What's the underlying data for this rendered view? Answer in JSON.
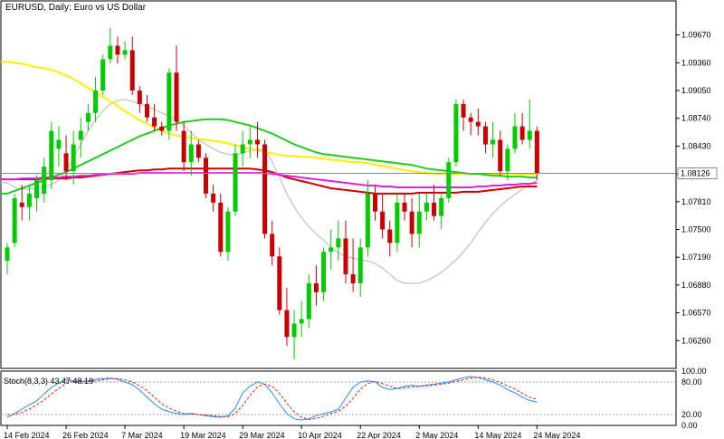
{
  "header": {
    "title": "EURUSD, Daily:  Euro vs US Dollar"
  },
  "subwindow": {
    "label": "Stoch(8,3,3) 43.47 48.19"
  },
  "colors": {
    "bull": "#00cc00",
    "bear": "#cc0000",
    "ma_yellow": "#ffee00",
    "ma_green": "#22cc22",
    "ma_gray": "#c8c8c8",
    "ma_red": "#cc0000",
    "ma_magenta": "#dd22dd",
    "stoch_main": "#1e90ff",
    "stoch_signal": "#dd2222",
    "price_line": "#7a8fa6"
  },
  "chart_data": [
    {
      "type": "candlestick",
      "symbol": "EURUSD",
      "timeframe": "Daily",
      "ylim": [
        1.0595,
        1.1005
      ],
      "y_ticks": [
        "1.09670",
        "1.09360",
        "1.09050",
        "1.08740",
        "1.08430",
        "1.08120",
        "1.07810",
        "1.07500",
        "1.07190",
        "1.06880",
        "1.06570",
        "1.06260"
      ],
      "last_price": "1.08126",
      "x_ticks": [
        "14 Feb 2024",
        "26 Feb 2024",
        "7 Mar 2024",
        "19 Mar 2024",
        "29 Mar 2024",
        "10 Apr 2024",
        "22 Apr 2024",
        "2 May 2024",
        "14 May 2024",
        "24 May 2024"
      ],
      "x_tick_index": [
        0,
        8,
        16,
        24,
        32,
        40,
        48,
        56,
        64,
        72
      ],
      "candles": [
        [
          1.0715,
          1.0735,
          1.07,
          1.073
        ],
        [
          1.0735,
          1.079,
          1.073,
          1.0785
        ],
        [
          1.078,
          1.08,
          1.076,
          1.0775
        ],
        [
          1.0775,
          1.08,
          1.076,
          1.079
        ],
        [
          1.0785,
          1.081,
          1.077,
          1.0805
        ],
        [
          1.079,
          1.083,
          1.078,
          1.082
        ],
        [
          1.0805,
          1.087,
          1.0795,
          1.086
        ],
        [
          1.084,
          1.0865,
          1.082,
          1.085
        ],
        [
          1.0835,
          1.0855,
          1.0805,
          1.0815
        ],
        [
          1.0815,
          1.086,
          1.08,
          1.0845
        ],
        [
          1.085,
          1.0875,
          1.083,
          1.086
        ],
        [
          1.087,
          1.089,
          1.086,
          1.088
        ],
        [
          1.088,
          1.092,
          1.087,
          1.0905
        ],
        [
          1.0905,
          1.0945,
          1.09,
          1.094
        ],
        [
          1.094,
          1.0975,
          1.0935,
          1.0955
        ],
        [
          1.0955,
          1.0965,
          1.0935,
          1.0945
        ],
        [
          1.0945,
          1.096,
          1.094,
          1.095
        ],
        [
          1.095,
          1.0965,
          1.09,
          1.0905
        ],
        [
          1.0905,
          1.091,
          1.088,
          1.089
        ],
        [
          1.089,
          1.09,
          1.087,
          1.0875
        ],
        [
          1.0875,
          1.089,
          1.086,
          1.0865
        ],
        [
          1.0865,
          1.087,
          1.0855,
          1.086
        ],
        [
          1.086,
          1.093,
          1.085,
          1.0925
        ],
        [
          1.0925,
          1.0955,
          1.086,
          1.087
        ],
        [
          1.086,
          1.087,
          1.0815,
          1.0825
        ],
        [
          1.0825,
          1.086,
          1.081,
          1.0845
        ],
        [
          1.0845,
          1.085,
          1.0825,
          1.083
        ],
        [
          1.083,
          1.0835,
          1.0785,
          1.079
        ],
        [
          1.079,
          1.08,
          1.077,
          1.078
        ],
        [
          1.078,
          1.079,
          1.072,
          1.0725
        ],
        [
          1.0725,
          1.0775,
          1.0715,
          1.077
        ],
        [
          1.077,
          1.0845,
          1.0765,
          1.0835
        ],
        [
          1.0835,
          1.086,
          1.082,
          1.0845
        ],
        [
          1.0845,
          1.0865,
          1.083,
          1.085
        ],
        [
          1.085,
          1.087,
          1.083,
          1.0845
        ],
        [
          1.0845,
          1.085,
          1.074,
          1.0745
        ],
        [
          1.0745,
          1.076,
          1.071,
          1.072
        ],
        [
          1.072,
          1.073,
          1.0655,
          1.066
        ],
        [
          1.066,
          1.0685,
          1.062,
          1.063
        ],
        [
          1.063,
          1.066,
          1.0605,
          1.0645
        ],
        [
          1.0645,
          1.067,
          1.063,
          1.065
        ],
        [
          1.065,
          1.07,
          1.064,
          1.069
        ],
        [
          1.069,
          1.071,
          1.0665,
          1.068
        ],
        [
          1.068,
          1.073,
          1.067,
          1.0725
        ],
        [
          1.0725,
          1.075,
          1.0705,
          1.073
        ],
        [
          1.073,
          1.076,
          1.0715,
          1.074
        ],
        [
          1.074,
          1.076,
          1.069,
          1.07
        ],
        [
          1.07,
          1.074,
          1.068,
          1.069
        ],
        [
          1.069,
          1.074,
          1.0675,
          1.073
        ],
        [
          1.073,
          1.0805,
          1.072,
          1.079
        ],
        [
          1.079,
          1.08,
          1.076,
          1.077
        ],
        [
          1.077,
          1.079,
          1.074,
          1.075
        ],
        [
          1.075,
          1.076,
          1.072,
          1.0735
        ],
        [
          1.0735,
          1.079,
          1.0725,
          1.078
        ],
        [
          1.078,
          1.079,
          1.076,
          1.077
        ],
        [
          1.077,
          1.0785,
          1.073,
          1.0745
        ],
        [
          1.0745,
          1.079,
          1.073,
          1.077
        ],
        [
          1.077,
          1.079,
          1.076,
          1.078
        ],
        [
          1.078,
          1.08,
          1.076,
          1.0765
        ],
        [
          1.0765,
          1.079,
          1.075,
          1.0785
        ],
        [
          1.0785,
          1.083,
          1.078,
          1.0825
        ],
        [
          1.0825,
          1.0895,
          1.082,
          1.089
        ],
        [
          1.089,
          1.0895,
          1.086,
          1.0875
        ],
        [
          1.0875,
          1.088,
          1.0855,
          1.087
        ],
        [
          1.087,
          1.0885,
          1.0855,
          1.0865
        ],
        [
          1.0865,
          1.087,
          1.0835,
          1.0845
        ],
        [
          1.0845,
          1.087,
          1.083,
          1.085
        ],
        [
          1.085,
          1.086,
          1.081,
          1.0815
        ],
        [
          1.0815,
          1.0845,
          1.0805,
          1.084
        ],
        [
          1.084,
          1.088,
          1.0835,
          1.0865
        ],
        [
          1.0865,
          1.088,
          1.0845,
          1.085
        ],
        [
          1.085,
          1.0895,
          1.084,
          1.086
        ],
        [
          1.086,
          1.0865,
          1.0805,
          1.0813
        ]
      ],
      "indicators": {
        "ma_yellow": [
          1.0937,
          1.0936,
          1.0935,
          1.0933,
          1.0931,
          1.093,
          1.0928,
          1.0925,
          1.0922,
          1.0918,
          1.0913,
          1.0908,
          1.0903,
          1.0898,
          1.0893,
          1.0888,
          1.0882,
          1.0877,
          1.0872,
          1.0868,
          1.0864,
          1.086,
          1.0857,
          1.0855,
          1.0853,
          1.0852,
          1.0851,
          1.085,
          1.0849,
          1.0848,
          1.0846,
          1.0844,
          1.0842,
          1.084,
          1.0838,
          1.0836,
          1.0835,
          1.0833,
          1.0832,
          1.0832,
          1.0831,
          1.0831,
          1.083,
          1.0829,
          1.0828,
          1.0827,
          1.0826,
          1.0825,
          1.0825,
          1.0824,
          1.0822,
          1.0821,
          1.0819,
          1.0818,
          1.0816,
          1.0815,
          1.0814,
          1.0813,
          1.0812,
          1.0812,
          1.0812,
          1.0812,
          1.0812,
          1.0812,
          1.0812,
          1.0812,
          1.0812,
          1.0812,
          1.0812,
          1.0812,
          1.0812,
          1.0812,
          1.0811
        ],
        "ma_green": [
          1.079,
          1.0793,
          1.0796,
          1.0799,
          1.0802,
          1.0805,
          1.0808,
          1.0811,
          1.0814,
          1.0818,
          1.0822,
          1.0826,
          1.083,
          1.0834,
          1.0838,
          1.0842,
          1.0846,
          1.085,
          1.0854,
          1.0857,
          1.086,
          1.0863,
          1.0866,
          1.0868,
          1.087,
          1.0871,
          1.0872,
          1.0873,
          1.0873,
          1.0873,
          1.0872,
          1.087,
          1.0868,
          1.0866,
          1.0863,
          1.086,
          1.0857,
          1.0853,
          1.0849,
          1.0845,
          1.0842,
          1.0839,
          1.0836,
          1.0834,
          1.0833,
          1.0832,
          1.0831,
          1.083,
          1.0829,
          1.0828,
          1.0827,
          1.0826,
          1.0825,
          1.0824,
          1.0823,
          1.0822,
          1.082,
          1.0818,
          1.0817,
          1.0816,
          1.0815,
          1.0814,
          1.0813,
          1.0812,
          1.0812,
          1.0811,
          1.081,
          1.081,
          1.0809,
          1.0809,
          1.0809,
          1.0808,
          1.0808
        ],
        "ma_gray": [
          1.0802,
          1.0797,
          1.0795,
          1.0795,
          1.0796,
          1.0798,
          1.08,
          1.0805,
          1.0815,
          1.083,
          1.0845,
          1.086,
          1.0872,
          1.0882,
          1.089,
          1.0894,
          1.0895,
          1.0893,
          1.089,
          1.0887,
          1.0884,
          1.088,
          1.0876,
          1.0872,
          1.0866,
          1.0858,
          1.085,
          1.0845,
          1.084,
          1.0836,
          1.0834,
          1.0833,
          1.0835,
          1.0838,
          1.084,
          1.0838,
          1.0826,
          1.0808,
          1.079,
          1.0775,
          1.0763,
          1.0753,
          1.0745,
          1.0738,
          1.073,
          1.0724,
          1.072,
          1.0718,
          1.0716,
          1.0715,
          1.0712,
          1.0707,
          1.07,
          1.0693,
          1.069,
          1.069,
          1.069,
          1.0693,
          1.0697,
          1.0702,
          1.0709,
          1.0716,
          1.0725,
          1.0735,
          1.0747,
          1.0758,
          1.0768,
          1.0776,
          1.0783,
          1.0789,
          1.0795,
          1.08,
          1.0805
        ],
        "ma_red": [
          1.0806,
          1.0806,
          1.0806,
          1.0806,
          1.0806,
          1.0807,
          1.0807,
          1.0807,
          1.0807,
          1.0808,
          1.0808,
          1.0809,
          1.081,
          1.0811,
          1.0812,
          1.0813,
          1.0814,
          1.0815,
          1.0816,
          1.0816,
          1.0817,
          1.0817,
          1.0818,
          1.0818,
          1.0818,
          1.0818,
          1.0818,
          1.0818,
          1.0818,
          1.0818,
          1.0818,
          1.0818,
          1.0818,
          1.0818,
          1.0817,
          1.0816,
          1.0814,
          1.0811,
          1.0808,
          1.0806,
          1.0804,
          1.0802,
          1.08,
          1.0798,
          1.0796,
          1.0795,
          1.0794,
          1.0793,
          1.0792,
          1.0791,
          1.079,
          1.079,
          1.079,
          1.079,
          1.079,
          1.079,
          1.0791,
          1.0791,
          1.0791,
          1.0791,
          1.0791,
          1.0791,
          1.0792,
          1.0792,
          1.0792,
          1.0793,
          1.0794,
          1.0795,
          1.0796,
          1.0797,
          1.0798,
          1.0798,
          1.0798
        ],
        "ma_magenta": [
          1.0806,
          1.0806,
          1.0807,
          1.0807,
          1.0807,
          1.0808,
          1.0808,
          1.0808,
          1.0809,
          1.0809,
          1.081,
          1.081,
          1.0811,
          1.0811,
          1.0812,
          1.0812,
          1.0812,
          1.0812,
          1.0813,
          1.0813,
          1.0813,
          1.0813,
          1.0813,
          1.0813,
          1.0813,
          1.0813,
          1.0813,
          1.0813,
          1.0813,
          1.0813,
          1.0813,
          1.0813,
          1.0813,
          1.0813,
          1.0813,
          1.0813,
          1.0812,
          1.0811,
          1.081,
          1.0809,
          1.0808,
          1.0807,
          1.0806,
          1.0805,
          1.0804,
          1.0803,
          1.0802,
          1.0801,
          1.08,
          1.0799,
          1.0799,
          1.0798,
          1.0798,
          1.0797,
          1.0797,
          1.0797,
          1.0797,
          1.0797,
          1.0797,
          1.0797,
          1.0797,
          1.0797,
          1.0797,
          1.0797,
          1.0798,
          1.0798,
          1.0799,
          1.0799,
          1.08,
          1.08,
          1.0801,
          1.0801,
          1.0802
        ]
      }
    },
    {
      "type": "line",
      "name": "Stoch(8,3,3)",
      "ylim": [
        0,
        100
      ],
      "y_ticks": [
        "100.00",
        "80.00",
        "20.00",
        "0.00"
      ],
      "levels": [
        80,
        20
      ],
      "series": [
        {
          "name": "main",
          "values": [
            15,
            22,
            30,
            38,
            45,
            58,
            70,
            78,
            84,
            82,
            80,
            82,
            85,
            86,
            87,
            85,
            80,
            75,
            65,
            52,
            40,
            30,
            25,
            22,
            20,
            22,
            20,
            18,
            16,
            15,
            18,
            32,
            60,
            72,
            80,
            76,
            60,
            40,
            22,
            12,
            10,
            12,
            18,
            22,
            25,
            30,
            50,
            70,
            80,
            82,
            80,
            70,
            66,
            68,
            72,
            74,
            72,
            74,
            76,
            78,
            80,
            84,
            88,
            90,
            88,
            84,
            80,
            74,
            66,
            60,
            52,
            46,
            43
          ]
        },
        {
          "name": "signal",
          "values": [
            20,
            20,
            24,
            30,
            38,
            47,
            58,
            68,
            77,
            81,
            82,
            81,
            82,
            84,
            86,
            86,
            84,
            80,
            73,
            64,
            52,
            40,
            32,
            26,
            22,
            21,
            20,
            19,
            18,
            16,
            16,
            22,
            37,
            55,
            71,
            76,
            72,
            59,
            41,
            25,
            15,
            11,
            13,
            17,
            22,
            26,
            35,
            50,
            67,
            77,
            81,
            77,
            72,
            68,
            69,
            71,
            72,
            73,
            74,
            76,
            78,
            81,
            84,
            87,
            89,
            87,
            84,
            79,
            73,
            67,
            59,
            52,
            48
          ]
        }
      ]
    }
  ]
}
